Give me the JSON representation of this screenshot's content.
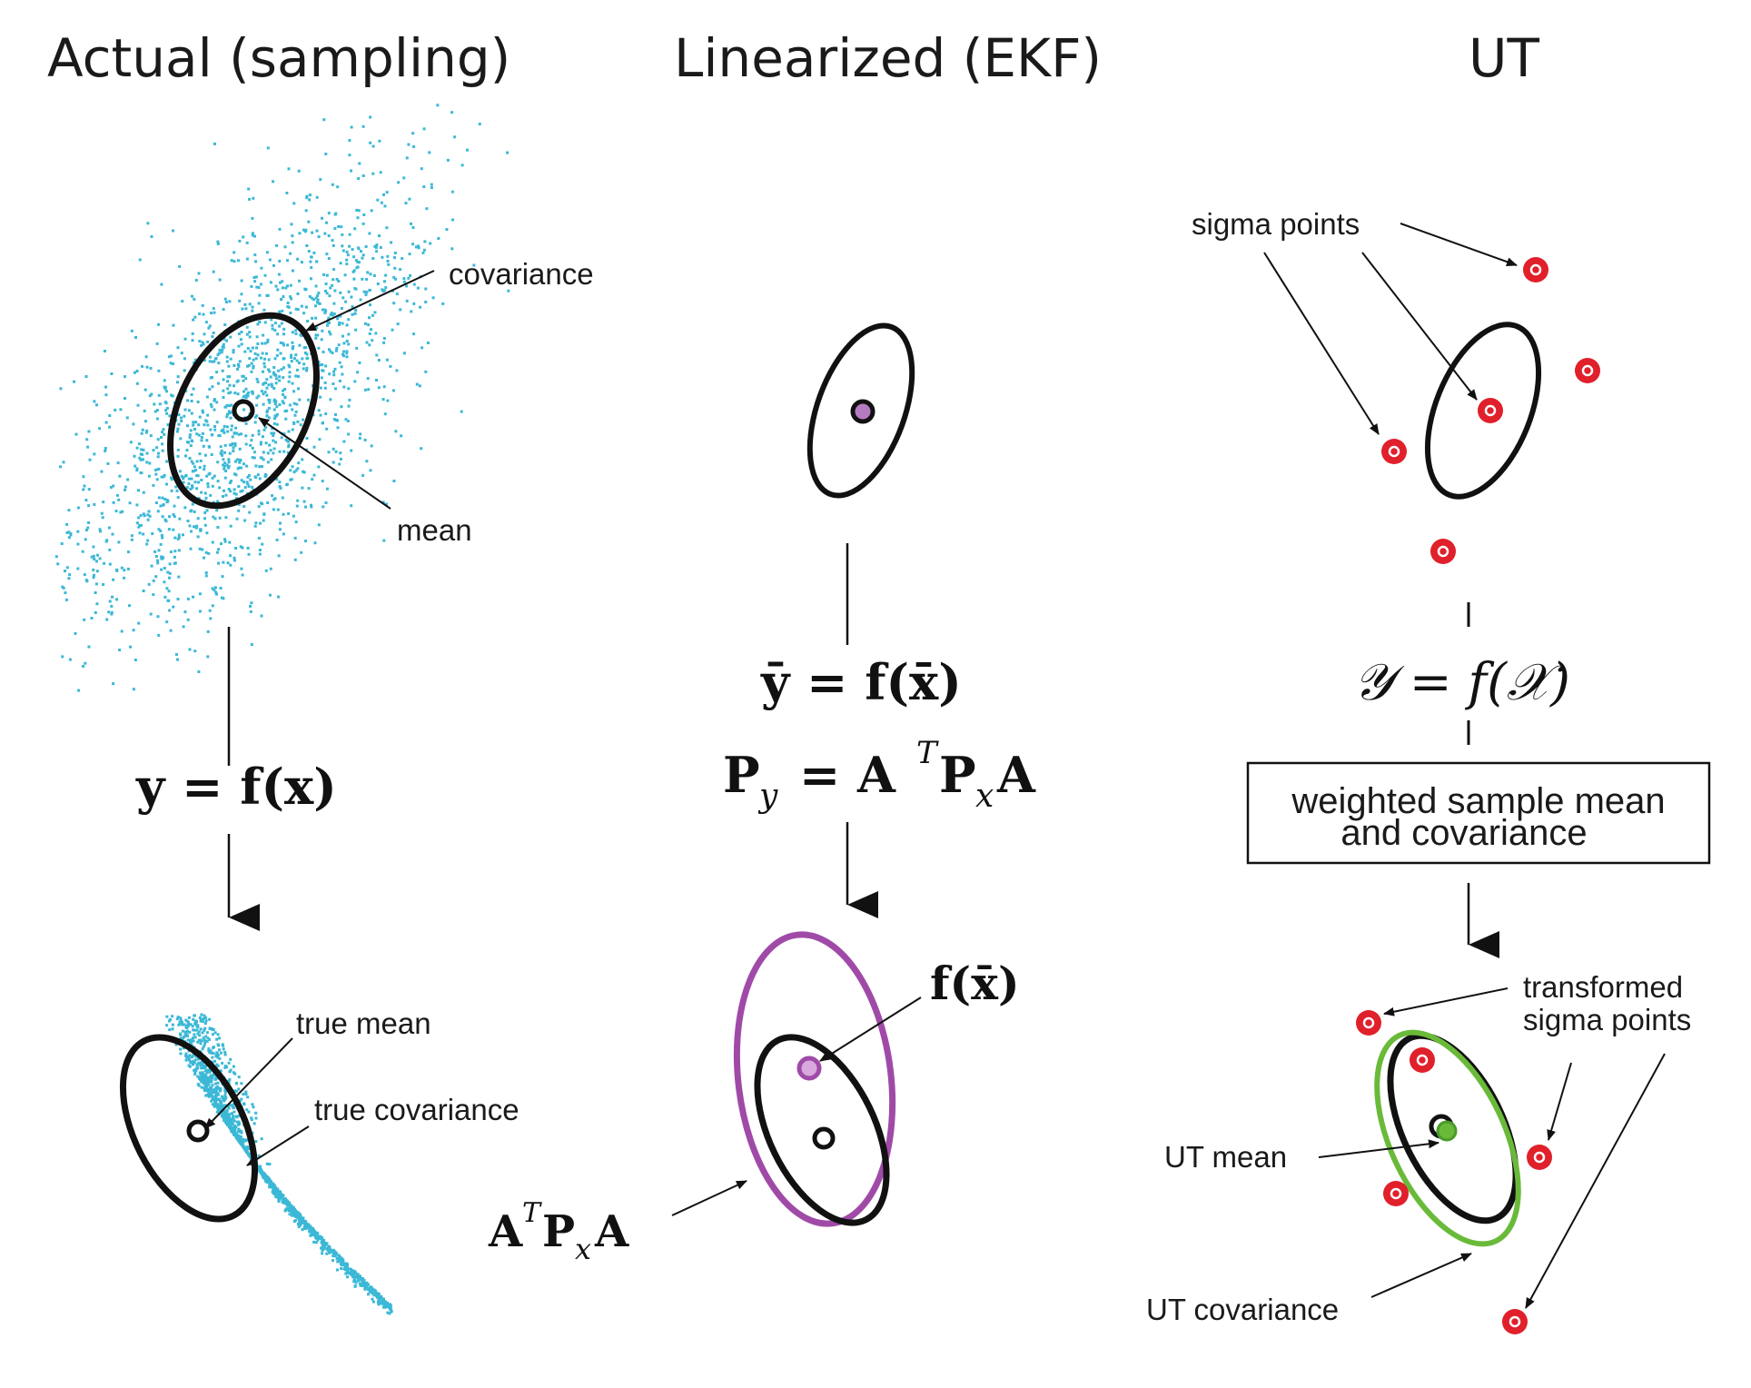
{
  "panels": {
    "actual": {
      "title": "Actual (sampling)",
      "label_covariance": "covariance",
      "label_mean": "mean",
      "equation": "y = f(x)",
      "label_true_mean": "true mean",
      "label_true_covariance": "true covariance"
    },
    "linearized": {
      "title": "Linearized (EKF)",
      "equation_mean": "ȳ = f(x̄)",
      "equation_cov_base": "P",
      "equation_cov_sub": "y",
      "equation_cov_rhs": "= A",
      "equation_cov_sup": "T",
      "equation_cov_mid": "P",
      "equation_cov_sub2": "x",
      "equation_cov_end": "A",
      "label_fx": "f(x̄)",
      "label_cov_a": "A",
      "label_cov_sup": "T",
      "label_cov_p": "P",
      "label_cov_sub": "x",
      "label_cov_end": "A"
    },
    "ut": {
      "title": "UT",
      "label_sigma_points": "sigma points",
      "equation": "𝒴 = f(𝒳)",
      "box_line1": "weighted sample mean",
      "box_line2": "and covariance",
      "label_transformed_1": "transformed",
      "label_transformed_2": "sigma points",
      "label_ut_mean": "UT mean",
      "label_ut_covariance": "UT covariance"
    }
  },
  "colors": {
    "scatter": "#3bb8d6",
    "ekf": "#a04aa8",
    "sigma": "#e0202a",
    "ut_cov": "#6aba3a",
    "ink": "#111111"
  }
}
